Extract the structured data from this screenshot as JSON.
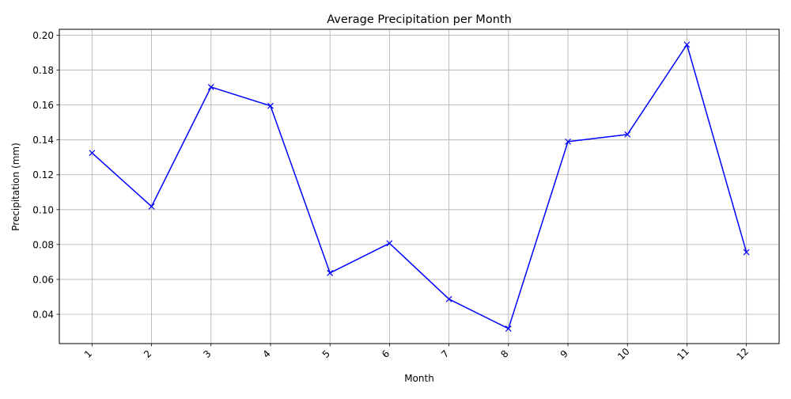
{
  "chart_data": {
    "type": "line",
    "title": "Average Precipitation per Month",
    "xlabel": "Month",
    "ylabel": "Precipitation (mm)",
    "x": [
      1,
      2,
      3,
      4,
      5,
      6,
      7,
      8,
      9,
      10,
      11,
      12
    ],
    "x_tick_labels": [
      "1",
      "2",
      "3",
      "4",
      "5",
      "6",
      "7",
      "8",
      "9",
      "10",
      "11",
      "12"
    ],
    "x_tick_rotation_deg": 45,
    "y_ticks": [
      0.04,
      0.06,
      0.08,
      0.1,
      0.12,
      0.14,
      0.16,
      0.18,
      0.2
    ],
    "y_tick_labels": [
      "0.04",
      "0.06",
      "0.08",
      "0.10",
      "0.12",
      "0.14",
      "0.16",
      "0.18",
      "0.20"
    ],
    "xlim": [
      0.45,
      12.55
    ],
    "ylim": [
      0.0232,
      0.2034
    ],
    "grid": true,
    "series": [
      {
        "values": [
          0.1325,
          0.1018,
          0.1703,
          0.1595,
          0.0637,
          0.0807,
          0.0487,
          0.0318,
          0.139,
          0.1431,
          0.1946,
          0.0756
        ],
        "color": "#0000ff",
        "marker": "x"
      }
    ]
  }
}
